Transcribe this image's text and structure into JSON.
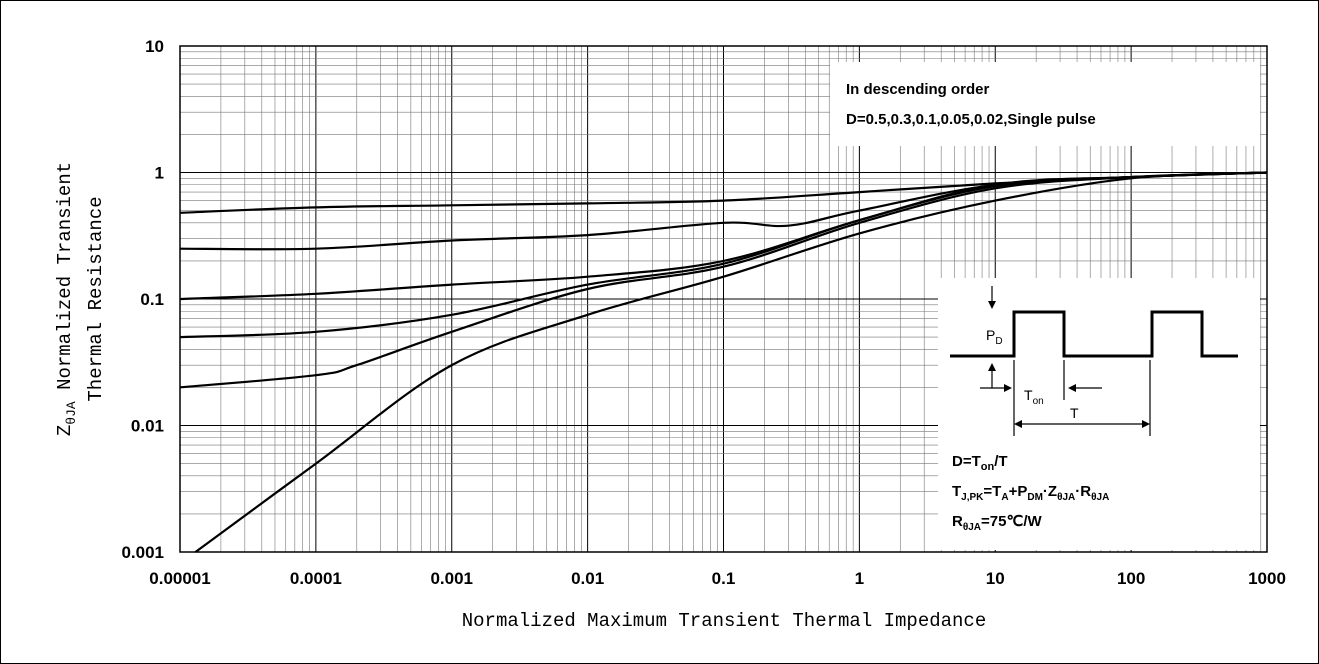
{
  "chart_data": {
    "type": "line",
    "xscale": "log",
    "yscale": "log",
    "xlim": [
      1e-05,
      1000
    ],
    "ylim": [
      0.001,
      10
    ],
    "grid": true,
    "xticks": [
      "0.00001",
      "0.0001",
      "0.001",
      "0.01",
      "0.1",
      "1",
      "10",
      "100",
      "1000"
    ],
    "yticks": [
      "10",
      "1",
      "0.1",
      "0.01",
      "0.001"
    ],
    "xlabel": "Normalized Maximum Transient Thermal Impedance",
    "ylabel_line1": "Z",
    "ylabel_sub": "θJA",
    "ylabel_line1_rest": " Normalized Transient",
    "ylabel_line2": "Thermal Resistance",
    "legend_title": "In descending order",
    "legend_text": "D=0.5,0.3,0.1,0.05,0.02,Single pulse",
    "series": [
      {
        "x": [
          1e-05,
          0.0001,
          0.001,
          0.01,
          0.1,
          1,
          10,
          100,
          1000
        ],
        "y": [
          0.48,
          0.53,
          0.55,
          0.57,
          0.6,
          0.7,
          0.82,
          0.92,
          1.0
        ]
      },
      {
        "x": [
          1e-05,
          0.0001,
          0.001,
          0.01,
          0.1,
          0.3,
          1,
          10,
          100,
          1000
        ],
        "y": [
          0.25,
          0.25,
          0.29,
          0.32,
          0.4,
          0.38,
          0.5,
          0.8,
          0.92,
          1.0
        ]
      },
      {
        "x": [
          1e-05,
          0.0001,
          0.001,
          0.01,
          0.1,
          1,
          10,
          100,
          1000
        ],
        "y": [
          0.1,
          0.11,
          0.13,
          0.15,
          0.2,
          0.42,
          0.8,
          0.92,
          1.0
        ]
      },
      {
        "x": [
          1e-05,
          0.0001,
          0.001,
          0.01,
          0.1,
          1,
          10,
          100,
          1000
        ],
        "y": [
          0.05,
          0.055,
          0.075,
          0.13,
          0.19,
          0.42,
          0.78,
          0.92,
          1.0
        ]
      },
      {
        "x": [
          1e-05,
          0.0001,
          0.0002,
          0.001,
          0.01,
          0.1,
          1,
          10,
          100,
          1000
        ],
        "y": [
          0.02,
          0.025,
          0.03,
          0.055,
          0.12,
          0.18,
          0.4,
          0.75,
          0.92,
          1.0
        ]
      },
      {
        "x": [
          1.3e-05,
          0.0001,
          0.001,
          0.01,
          0.1,
          1,
          10,
          100,
          1000
        ],
        "y": [
          0.001,
          0.005,
          0.03,
          0.075,
          0.15,
          0.33,
          0.6,
          0.9,
          1.0
        ]
      }
    ]
  },
  "inset": {
    "pd_label": "P",
    "pd_sub": "D",
    "ton_label": "T",
    "ton_sub": "on",
    "t_label": "T",
    "eq1_a": "D=T",
    "eq1_sub": "on",
    "eq1_b": "/T",
    "eq2_a": "T",
    "eq2_sub1": "J,PK",
    "eq2_b": "=T",
    "eq2_sub2": "A",
    "eq2_c": "+P",
    "eq2_sub3": "DM",
    "eq2_d": "·Z",
    "eq2_sub4": "θJA",
    "eq2_e": "·R",
    "eq2_sub5": "θJA",
    "eq3_a": "R",
    "eq3_sub": "θJA",
    "eq3_b": "=75℃/W"
  }
}
